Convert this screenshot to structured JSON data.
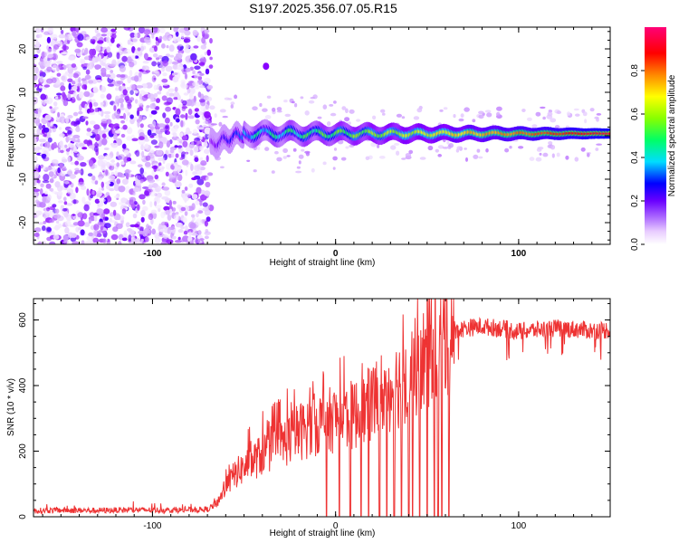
{
  "title": "S197.2025.356.07.05.R15",
  "chart_data": [
    {
      "type": "heatmap",
      "name": "spectrogram",
      "xlabel": "Height of straight line (km)",
      "ylabel": "Frequency (Hz)",
      "xlim": [
        -165,
        150
      ],
      "ylim": [
        -25,
        25
      ],
      "xticks": [
        -100,
        0,
        100
      ],
      "xtick_labels": [
        "-100",
        "0",
        "100"
      ],
      "yticks": [
        -20,
        -10,
        0,
        10,
        20
      ],
      "ytick_labels": [
        "-20",
        "-10",
        "0",
        "10",
        "20"
      ],
      "colorbar": {
        "label": "Normalized spectral amplitude",
        "range": [
          0,
          1
        ],
        "ticks": [
          0,
          0.2,
          0.4,
          0.6,
          0.8
        ],
        "tick_labels": [
          "0.0",
          "0.2",
          "0.4",
          "0.6",
          "0.8"
        ],
        "colors": [
          "#ffffff",
          "#cc99ff",
          "#8800ff",
          "#0000ff",
          "#00ddff",
          "#00ff66",
          "#88ff00",
          "#ffff00",
          "#ff8800",
          "#ff0000",
          "#ff0077"
        ]
      },
      "regions": [
        {
          "description": "noise",
          "x_range": [
            -165,
            -68
          ],
          "freq_range": [
            -25,
            25
          ],
          "amplitude": 0.12
        },
        {
          "description": "ramp-up",
          "x_range": [
            -68,
            -50
          ],
          "freq_center": -2,
          "amplitude": 0.35
        },
        {
          "description": "signal",
          "x_range": [
            -50,
            150
          ],
          "freq_center": 0.5,
          "amplitude_start": 0.4,
          "amplitude_end": 0.95
        }
      ],
      "isolated_blob": {
        "x": -38,
        "freq": 16,
        "amplitude": 0.2
      }
    },
    {
      "type": "line",
      "name": "snr",
      "xlabel": "Height of straight line (km)",
      "ylabel": "SNR (10 * v/v)",
      "xlim": [
        -165,
        150
      ],
      "ylim": [
        0,
        665
      ],
      "xticks": [
        -100,
        0,
        100
      ],
      "xtick_labels": [
        "-100",
        "0",
        "100"
      ],
      "yticks": [
        0,
        200,
        400,
        600
      ],
      "ytick_labels": [
        "0",
        "200",
        "400",
        "600"
      ],
      "color": "#ee3333",
      "series": [
        {
          "name": "SNR",
          "x": [
            -165,
            -150,
            -130,
            -110,
            -90,
            -70,
            -65,
            -60,
            -55,
            -50,
            -45,
            -40,
            -35,
            -30,
            -25,
            -20,
            -15,
            -10,
            -5,
            0,
            5,
            10,
            15,
            20,
            25,
            30,
            35,
            40,
            45,
            50,
            55,
            60,
            65,
            70,
            80,
            90,
            100,
            110,
            120,
            130,
            140,
            150
          ],
          "y": [
            18,
            20,
            19,
            21,
            20,
            22,
            40,
            90,
            130,
            150,
            170,
            190,
            210,
            220,
            240,
            260,
            270,
            285,
            290,
            300,
            305,
            310,
            320,
            350,
            380,
            390,
            410,
            430,
            460,
            490,
            530,
            555,
            560,
            575,
            580,
            575,
            565,
            570,
            575,
            572,
            568,
            570
          ]
        }
      ],
      "dropouts_x": [
        -5,
        2,
        8,
        14,
        18,
        24,
        28,
        32,
        36,
        40,
        42,
        46,
        50,
        54,
        56,
        58,
        62
      ]
    }
  ]
}
